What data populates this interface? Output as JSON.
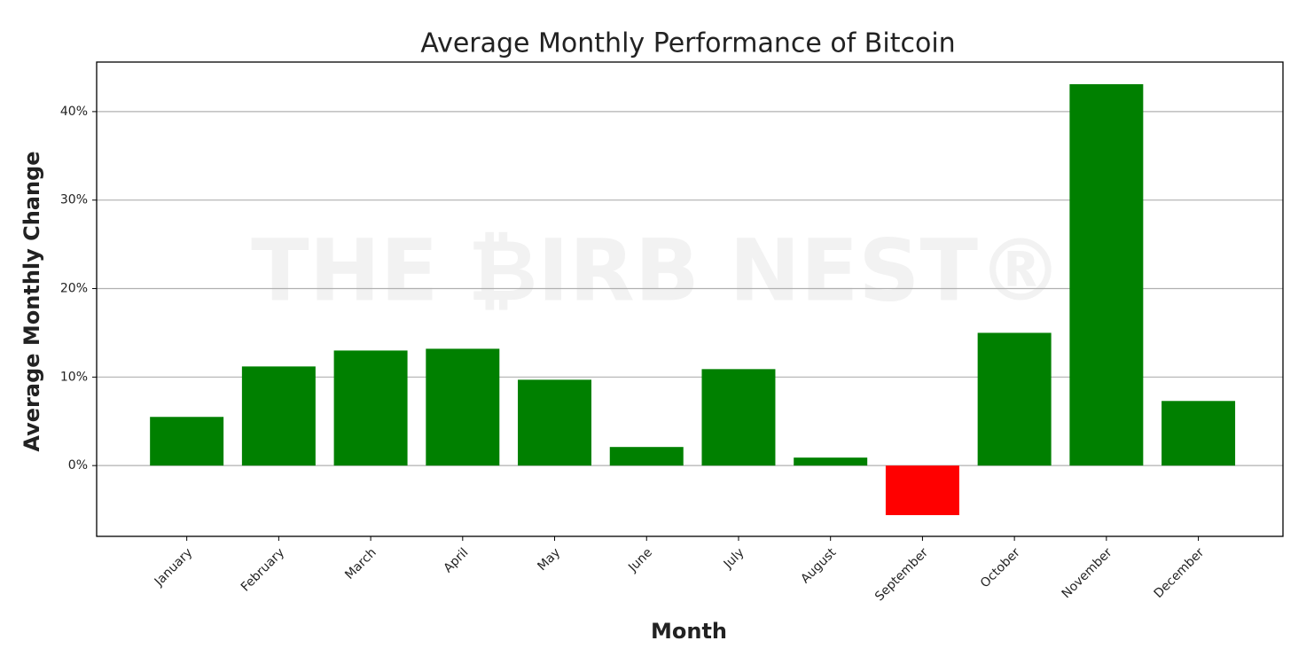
{
  "chart_data": {
    "type": "bar",
    "title": "Average Monthly Performance of Bitcoin",
    "xlabel": "Month",
    "ylabel": "Average Monthly Change",
    "watermark": "THE ₿IRB NEST®",
    "categories": [
      "January",
      "February",
      "March",
      "April",
      "May",
      "June",
      "July",
      "August",
      "September",
      "October",
      "November",
      "December"
    ],
    "values": [
      5.5,
      11.2,
      13.0,
      13.2,
      9.7,
      2.1,
      10.9,
      0.9,
      -5.6,
      15.0,
      43.1,
      7.3
    ],
    "colors": [
      "#008000",
      "#008000",
      "#008000",
      "#008000",
      "#008000",
      "#008000",
      "#008000",
      "#008000",
      "#ff0000",
      "#008000",
      "#008000",
      "#008000"
    ],
    "ylim": [
      -8.0,
      45.6
    ],
    "yticks": [
      {
        "value": 0,
        "label": "0%"
      },
      {
        "value": 10,
        "label": "10%"
      },
      {
        "value": 20,
        "label": "20%"
      },
      {
        "value": 30,
        "label": "30%"
      },
      {
        "value": 40,
        "label": "40%"
      }
    ],
    "grid": true
  }
}
